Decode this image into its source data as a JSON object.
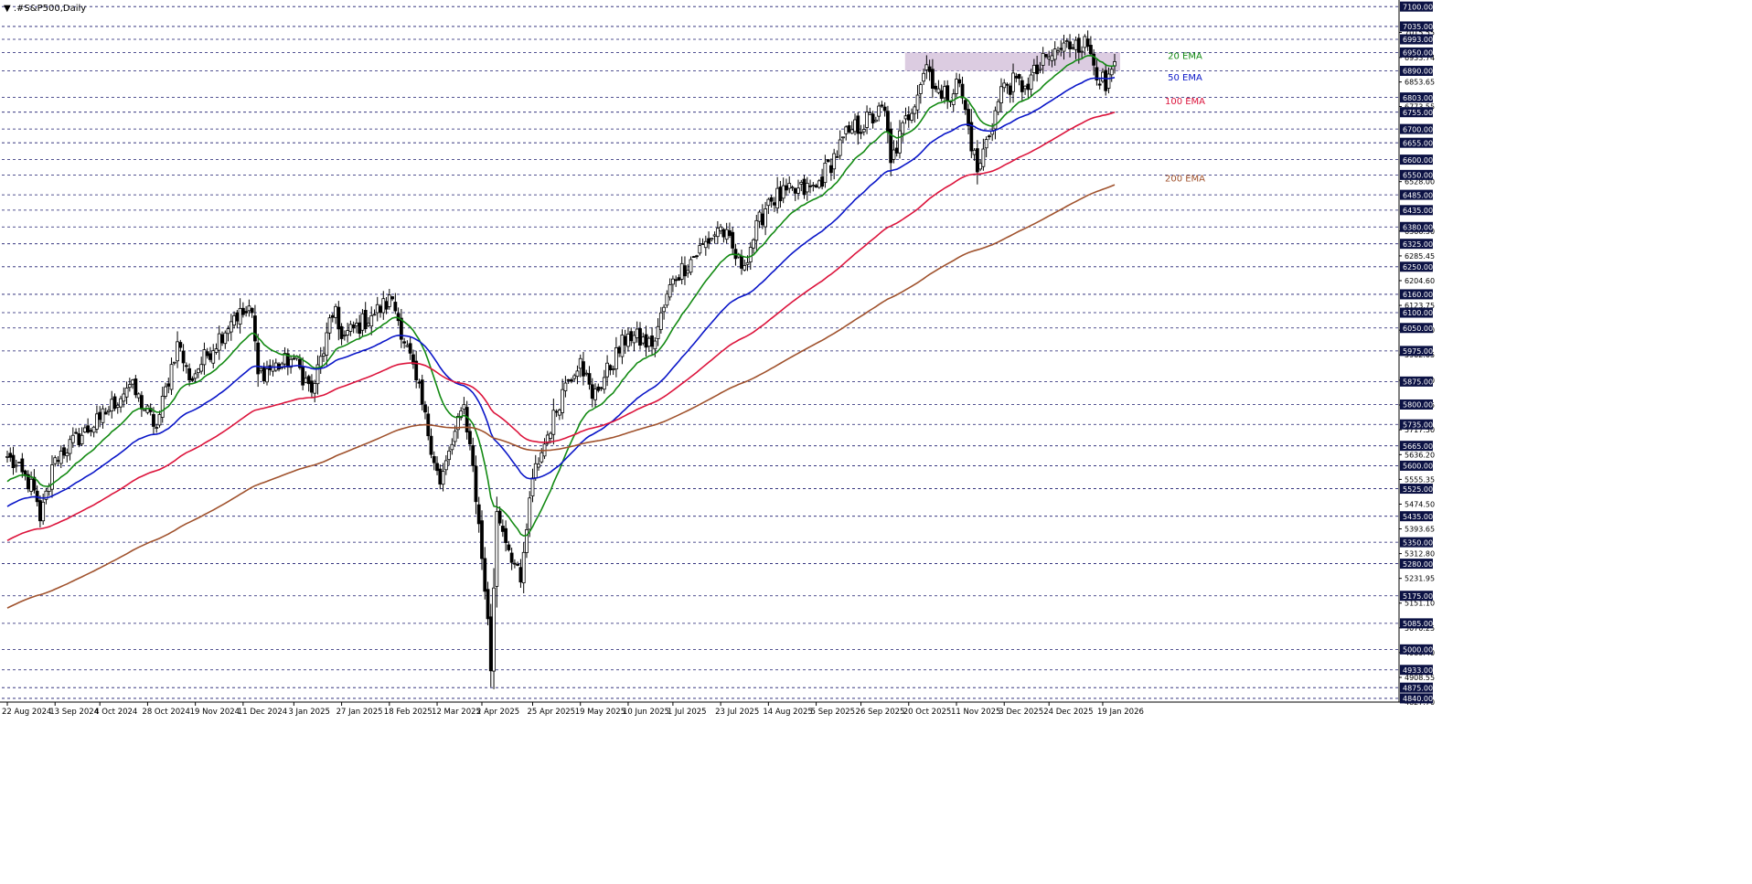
{
  "chart_data": {
    "type": "line",
    "title": "▼ .#S&P500,Daily",
    "xlabel": "",
    "ylabel": "",
    "ylim": [
      4827.8,
      7109.5
    ],
    "grid": true,
    "colors": {
      "background": "#ffffff",
      "grid": "#1a1a6e",
      "candle": "#000000",
      "ema20": "#138a13",
      "ema50": "#0a16c8",
      "ema100": "#dc143c",
      "ema200": "#a0522d",
      "zone": "#d6c3dc",
      "label_box": "#0c1244",
      "label_text": "#ffffff"
    },
    "x_tick_labels": [
      "22 Aug 2024",
      "13 Sep 2024",
      "4 Oct 2024",
      "28 Oct 2024",
      "19 Nov 2024",
      "11 Dec 2024",
      "3 Jan 2025",
      "27 Jan 2025",
      "18 Feb 2025",
      "12 Mar 2025",
      "2 Apr 2025",
      "25 Apr 2025",
      "19 May 2025",
      "10 Jun 2025",
      "1 Jul 2025",
      "23 Jul 2025",
      "14 Aug 2025",
      "5 Sep 2025",
      "26 Sep 2025",
      "20 Oct 2025",
      "11 Nov 2025",
      "3 Dec 2025",
      "24 Dec 2025",
      "19 Jan 2026"
    ],
    "price_levels_boxed": [
      7100.0,
      7035.0,
      6993.0,
      6950.0,
      6890.0,
      6803.0,
      6755.0,
      6700.0,
      6655.0,
      6600.0,
      6550.0,
      6485.0,
      6435.0,
      6380.0,
      6325.0,
      6250.0,
      6160.0,
      6100.0,
      6050.0,
      5975.0,
      5875.0,
      5800.0,
      5735.0,
      5665.0,
      5600.0,
      5525.0,
      5435.0,
      5350.0,
      5280.0,
      5175.0,
      5085.0,
      5000.0,
      4933.0,
      4875.0,
      4840.0
    ],
    "price_levels_plain": [
      "7015.55",
      "6933.74",
      "6853.65",
      "6773.55",
      "6528.00",
      "6366.50",
      "6285.45",
      "6204.60",
      "6123.75",
      "6042.90",
      "5962.05",
      "5879.20",
      "5798.35",
      "5717.50",
      "5636.20",
      "5555.35",
      "5474.50",
      "5393.65",
      "5312.80",
      "5231.95",
      "5151.10",
      "5070.25",
      "4989.40",
      "4908.55",
      "4827.70"
    ],
    "resistance_zone": {
      "from": 6890,
      "to": 6950,
      "start": "20 Oct 2025"
    },
    "series_labels": [
      {
        "name": "20 EMA",
        "color": "#138a13",
        "y": 6938
      },
      {
        "name": "50 EMA",
        "color": "#0a16c8",
        "y": 6868
      },
      {
        "name": "100 EMA",
        "color": "#dc143c",
        "y": 6790
      },
      {
        "name": "200 EMA",
        "color": "#a0522d",
        "y": 6538
      }
    ],
    "anchors": [
      {
        "date": "22 Aug 2024",
        "close": 5630
      },
      {
        "date": "4 Sep 2024",
        "close": 5520
      },
      {
        "date": "6 Sep 2024",
        "close": 5420
      },
      {
        "date": "13 Sep 2024",
        "close": 5626
      },
      {
        "date": "4 Oct 2024",
        "close": 5751
      },
      {
        "date": "18 Oct 2024",
        "close": 5865
      },
      {
        "date": "31 Oct 2024",
        "close": 5725
      },
      {
        "date": "11 Nov 2024",
        "close": 6005
      },
      {
        "date": "15 Nov 2024",
        "close": 5880
      },
      {
        "date": "6 Dec 2024",
        "close": 6090
      },
      {
        "date": "16 Dec 2024",
        "close": 6100
      },
      {
        "date": "18 Dec 2024",
        "close": 5900
      },
      {
        "date": "3 Jan 2025",
        "close": 5950
      },
      {
        "date": "13 Jan 2025",
        "close": 5840
      },
      {
        "date": "23 Jan 2025",
        "close": 6120
      },
      {
        "date": "27 Jan 2025",
        "close": 6015
      },
      {
        "date": "10 Feb 2025",
        "close": 6090
      },
      {
        "date": "19 Feb 2025",
        "close": 6145
      },
      {
        "date": "3 Mar 2025",
        "close": 5880
      },
      {
        "date": "13 Mar 2025",
        "close": 5540
      },
      {
        "date": "25 Mar 2025",
        "close": 5800
      },
      {
        "date": "28 Mar 2025",
        "close": 5600
      },
      {
        "date": "4 Apr 2025",
        "close": 5100
      },
      {
        "date": "7 Apr 2025",
        "close": 4930
      },
      {
        "date": "9 Apr 2025",
        "close": 5450
      },
      {
        "date": "21 Apr 2025",
        "close": 5220
      },
      {
        "date": "25 Apr 2025",
        "close": 5560
      },
      {
        "date": "2 May 2025",
        "close": 5700
      },
      {
        "date": "12 May 2025",
        "close": 5870
      },
      {
        "date": "19 May 2025",
        "close": 5950
      },
      {
        "date": "23 May 2025",
        "close": 5820
      },
      {
        "date": "10 Jun 2025",
        "close": 6030
      },
      {
        "date": "20 Jun 2025",
        "close": 5990
      },
      {
        "date": "1 Jul 2025",
        "close": 6210
      },
      {
        "date": "23 Jul 2025",
        "close": 6380
      },
      {
        "date": "1 Aug 2025",
        "close": 6245
      },
      {
        "date": "14 Aug 2025",
        "close": 6470
      },
      {
        "date": "5 Sep 2025",
        "close": 6510
      },
      {
        "date": "22 Sep 2025",
        "close": 6690
      },
      {
        "date": "8 Oct 2025",
        "close": 6760
      },
      {
        "date": "10 Oct 2025",
        "close": 6590
      },
      {
        "date": "28 Oct 2025",
        "close": 6910
      },
      {
        "date": "4 Nov 2025",
        "close": 6800
      },
      {
        "date": "12 Nov 2025",
        "close": 6850
      },
      {
        "date": "20 Nov 2025",
        "close": 6560
      },
      {
        "date": "3 Dec 2025",
        "close": 6850
      },
      {
        "date": "12 Dec 2025",
        "close": 6840
      },
      {
        "date": "24 Dec 2025",
        "close": 6935
      },
      {
        "date": "6 Jan 2026",
        "close": 6990
      },
      {
        "date": "12 Jan 2026",
        "close": 6970
      },
      {
        "date": "20 Jan 2026",
        "close": 6825
      },
      {
        "date": "23 Jan 2026",
        "close": 6920
      }
    ]
  }
}
